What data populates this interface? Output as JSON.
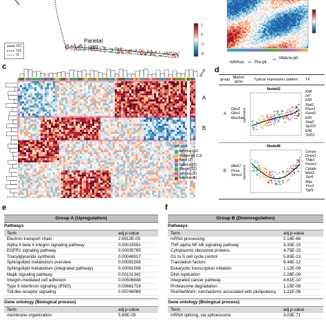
{
  "panel_a": {
    "label_parietal": "Parietal",
    "label_parietal_coords": "(1,8)",
    "time_legend": [
      "t12",
      "t13",
      "t1"
    ],
    "colorbar_ticks": [
      "1",
      "0",
      "-1",
      "-5"
    ],
    "colors": {
      "line_dark": "#333333",
      "line_mid": "#888888"
    }
  },
  "panel_b": {
    "axis_labels": [
      "Isthmus",
      "Pre\n-pit",
      "Mature\n-pit"
    ],
    "label_isthmus": "Isthmus",
    "label_prepit": "Pre-pit",
    "label_maturepit": "Mature-pit"
  },
  "panel_c": {
    "label": "c",
    "group_header": "group",
    "groups": [
      "A",
      "B"
    ],
    "legend_title": "cell-type",
    "legend_items": [
      {
        "label": "Isthmus (11)",
        "color": "#2bb5a0"
      },
      {
        "label": "Mature-pit (13)",
        "color": "#e3c34a"
      },
      {
        "label": "Neck (2)",
        "color": "#e05a3c"
      },
      {
        "label": "Isthmus (3)",
        "color": "#6b7fd4"
      },
      {
        "label": "Pre-pit (12)",
        "color": "#5aa83e"
      },
      {
        "label": "Isthmus (5)",
        "color": "#d267b2"
      },
      {
        "label": "Isthmus (6)",
        "color": "#7a5a3a"
      }
    ],
    "heatmap_colors": {
      "high": "#b2182b",
      "mid": "#fddbc7",
      "neutral": "#f7f7f7",
      "low": "#2166ac"
    }
  },
  "panel_d": {
    "label": "d",
    "headers": [
      "group",
      "Marker gene",
      "Typical expression pattern",
      "TF"
    ],
    "rows": [
      {
        "group": "A",
        "markers": [
          "Gkn2",
          "Gkn1",
          "Muc5ac"
        ],
        "node": "Node02",
        "ylabel": "expression",
        "tfs": [
          "Klf4",
          "Irf7",
          "Klf3",
          "Stat1",
          "Plscr1",
          "Foxa3",
          "Elf3",
          "Stat2",
          "Sp100",
          "Elf4",
          "Tcf23"
        ]
      },
      {
        "group": "B",
        "markers": [
          "Mki67",
          "Pcna",
          "Stmn1"
        ],
        "node": "Node46",
        "ylabel": "expression",
        "tfs": [
          "Cenpa",
          "Dnmt1",
          "Tfdp1",
          "Foxm1",
          "Cebpb",
          "Mxd3",
          "Terf1",
          "Max",
          "Ybx3",
          "Tgif1"
        ]
      }
    ]
  },
  "panel_e": {
    "label": "e",
    "title": "Group A (Upregulation)",
    "pathways_label": "Pathways",
    "col_term": "Term",
    "col_p": "adj.p-value",
    "rows": [
      {
        "term": "Electron transport chain",
        "p": "2.6912E-05"
      },
      {
        "term": "Alpha 6 beta 4 integrin signaling pathway",
        "p": "0.00015591"
      },
      {
        "term": "EGFR1 signaling pathway",
        "p": "0.00035785"
      },
      {
        "term": "Triacylglyceride synthesis",
        "p": "0.00048917"
      },
      {
        "term": "Sphingolipid metabolism overview",
        "p": "0.00091508"
      },
      {
        "term": "Sphingolipid metabolism (integrated pathway)",
        "p": "0.00091508"
      },
      {
        "term": "Mapk signaling pathway",
        "p": "0.00101342"
      },
      {
        "term": "Integrin-mediated cell adhesion",
        "p": "0.00506848"
      },
      {
        "term": "Type II interferon signaling (IFNG)",
        "p": "0.00661719"
      },
      {
        "term": "Toll-like receptor signaling",
        "p": "0.00746089"
      }
    ],
    "go_label": "Gene ontology (Biological process)",
    "go_col_term": "Term",
    "go_col_p": "adj.p-value",
    "go_rows": [
      {
        "term": "membrane organization",
        "p": "5.65E-09"
      }
    ]
  },
  "panel_f": {
    "label": "f",
    "title": "Group B (Downregulation)",
    "pathways_label": "Pathways",
    "col_term": "Term",
    "col_p": "adj.p-value",
    "rows": [
      {
        "term": "mRNA processing",
        "p": "2.14E-66"
      },
      {
        "term": "TNF-alpha NF-kB signaling pathway",
        "p": "3.35E-15"
      },
      {
        "term": "Cytoplasmic ribosomal proteins",
        "p": "4.75E-15"
      },
      {
        "term": "G1 to S cell cycle control",
        "p": "5.85E-13"
      },
      {
        "term": "Translation factors",
        "p": "9.46E-12"
      },
      {
        "term": "Eukaryotic transcription initiation",
        "p": "1.12E-09"
      },
      {
        "term": "DNA replication",
        "p": "2.28E-09"
      },
      {
        "term": "Integrated cancer pathway",
        "p": "4.61E-10"
      },
      {
        "term": "Proteasome degradation",
        "p": "1.15E-08"
      },
      {
        "term": "PluriNetWork: mechanisms associated with pluripotency",
        "p": "1.21E-08"
      }
    ],
    "go_label": "Gene ontology (Biological process)",
    "go_col_term": "Term",
    "go_col_p": "adj.p-value",
    "go_rows": [
      {
        "term": "mRNA splicing, via spliceosome",
        "p": "3.03E-71"
      }
    ]
  }
}
